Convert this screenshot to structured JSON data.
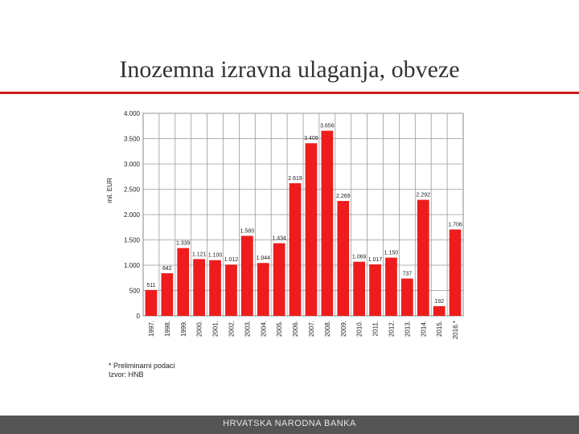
{
  "title": "Inozemna izravna ulaganja, obveze",
  "notes": {
    "preliminary": "* Preliminarni podaci",
    "source": "Izvor: HNB"
  },
  "footer": "HRVATSKA NARODNA BANKA",
  "colors": {
    "accent": "#d11c1c",
    "bar": "#ee1c1c",
    "footer": "#555555"
  },
  "chart_data": {
    "type": "bar",
    "title": "",
    "ylabel": "mil. EUR",
    "xlabel": "",
    "ylim": [
      0,
      4000
    ],
    "yticks": [
      0,
      500,
      1000,
      1500,
      2000,
      2500,
      3000,
      3500,
      4000
    ],
    "ytick_labels": [
      "0",
      "500",
      "1.000",
      "1.500",
      "2.000",
      "2.500",
      "3.000",
      "3.500",
      "4.000"
    ],
    "grid": true,
    "categories": [
      "1997.",
      "1998.",
      "1999.",
      "2000.",
      "2001.",
      "2002.",
      "2003.",
      "2004.",
      "2005.",
      "2006.",
      "2007.",
      "2008.",
      "2009.",
      "2010.",
      "2011.",
      "2012.",
      "2013.",
      "2014.",
      "2015.",
      "2016.*"
    ],
    "values": [
      511,
      842,
      1339,
      1121,
      1100,
      1012,
      1580,
      1044,
      1434,
      2619,
      3409,
      3656,
      2269,
      1069,
      1017,
      1150,
      737,
      2292,
      192,
      1706
    ],
    "value_labels": [
      "511",
      "842",
      "1.339",
      "1.121",
      "1.100",
      "1.012",
      "1.580",
      "1.044",
      "1.434",
      "2.619",
      "3.409",
      "3.656",
      "2.269",
      "1.069",
      "1.017",
      "1.150",
      "737",
      "2.292",
      "192",
      "1.706"
    ]
  }
}
